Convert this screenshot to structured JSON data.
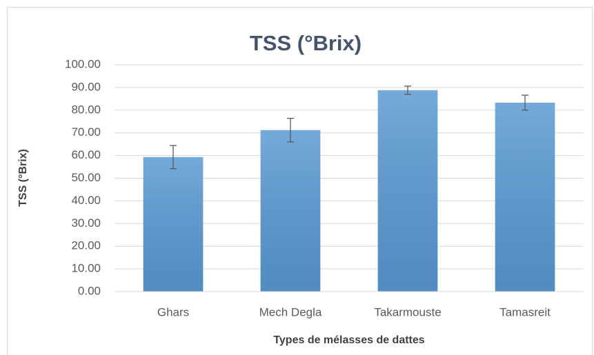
{
  "chart_data": {
    "type": "bar",
    "title": "TSS (°Brix)",
    "x_label": "Types de mélasses de dattes",
    "y_label": "TSS (°Brix)",
    "categories": [
      "Ghars",
      "Mech Degla",
      "Takarmouste",
      "Tamasreit"
    ],
    "values": [
      59.3,
      71.2,
      88.8,
      83.3
    ],
    "errors": [
      5.1,
      5.2,
      1.8,
      3.3
    ],
    "color": "#5b9bd5",
    "ylim": [
      0,
      100
    ],
    "yticks": [
      {
        "value": 0,
        "label": "0.00"
      },
      {
        "value": 10,
        "label": "10.00"
      },
      {
        "value": 20,
        "label": "20.00"
      },
      {
        "value": 30,
        "label": "30.00"
      },
      {
        "value": 40,
        "label": "40.00"
      },
      {
        "value": 50,
        "label": "50.00"
      },
      {
        "value": 60,
        "label": "60.00"
      },
      {
        "value": 70,
        "label": "70.00"
      },
      {
        "value": 80,
        "label": "80.00"
      },
      {
        "value": 90,
        "label": "90.00"
      },
      {
        "value": 100,
        "label": "100.00"
      }
    ],
    "grid": true
  }
}
